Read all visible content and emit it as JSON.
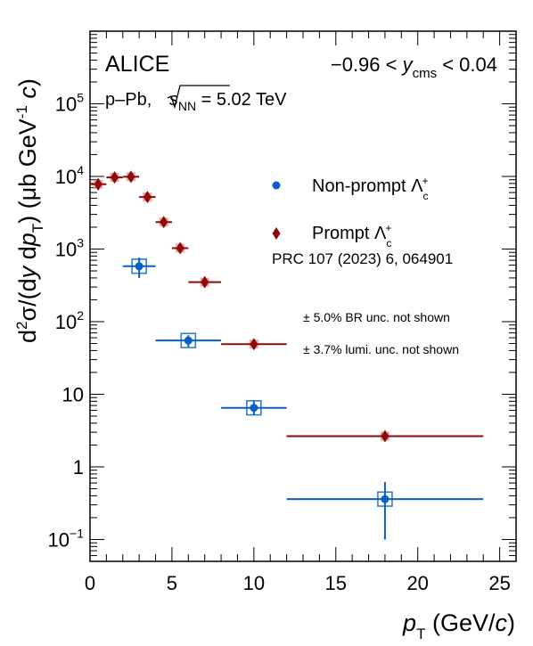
{
  "chart_data": {
    "type": "scatter",
    "log_y": true,
    "xlim": [
      0,
      26
    ],
    "ylim": [
      0.05,
      1000000
    ],
    "x_ticks": [
      0,
      5,
      10,
      15,
      20,
      25
    ],
    "y_ticks": [
      {
        "value": 0.1,
        "base": "10",
        "exp": "−1"
      },
      {
        "value": 1,
        "base": "1",
        "exp": ""
      },
      {
        "value": 10,
        "base": "10",
        "exp": ""
      },
      {
        "value": 100,
        "base": "10",
        "exp": "2"
      },
      {
        "value": 1000,
        "base": "10",
        "exp": "3"
      },
      {
        "value": 10000,
        "base": "10",
        "exp": "4"
      },
      {
        "value": 100000,
        "base": "10",
        "exp": "5"
      }
    ],
    "xlabel": {
      "main": "p",
      "sub": "T",
      "unit": " (GeV/",
      "c": "c",
      "close": ")"
    },
    "ylabel": {
      "a": "d",
      "a_sup": "2",
      "b": "σ/(d",
      "y": "y",
      "c": " d",
      "p": "p",
      "p_sub": "T",
      "d": ")  (μb GeV",
      "d_sup": "-1",
      "e": " ",
      "cc": "c",
      "f": ")"
    },
    "annotations": {
      "experiment": "ALICE",
      "system_prefix": "p–Pb, ",
      "system_s": "s",
      "system_sub": "NN",
      "system_energy": " = 5.02 TeV",
      "rapidity_left": "−0.96 < ",
      "rapidity_y": "y",
      "rapidity_sub": "cms",
      "rapidity_right": " < 0.04",
      "reference": "PRC 107 (2023) 6, 064901",
      "note_br": "± 5.0% BR unc. not shown",
      "note_lumi": "± 3.7% lumi. unc. not shown"
    },
    "legend_position": "right",
    "series": [
      {
        "name": "Non-prompt Λ",
        "name_sup": "+",
        "name_sub": "c",
        "marker": "circle",
        "color": "#0a5fc4",
        "syst_color": "#2e7fd9",
        "points": [
          {
            "x": 3,
            "xlo": 2,
            "xhi": 4,
            "y": 580,
            "ylo": 400,
            "yhi": 760
          },
          {
            "x": 6,
            "xlo": 4,
            "xhi": 8,
            "y": 55,
            "ylo": 45,
            "yhi": 65
          },
          {
            "x": 10,
            "xlo": 8,
            "xhi": 12,
            "y": 6.5,
            "ylo": 5.2,
            "yhi": 8.0
          },
          {
            "x": 18,
            "xlo": 12,
            "xhi": 24,
            "y": 0.36,
            "ylo": 0.1,
            "yhi": 0.62
          }
        ]
      },
      {
        "name": "Prompt Λ",
        "name_sup": "+",
        "name_sub": "c",
        "marker": "diamond",
        "color": "#8b0a0a",
        "syst_color": "#e88a8a",
        "points": [
          {
            "x": 0.5,
            "xlo": 0,
            "xhi": 1,
            "y": 7800,
            "ylo": 6500,
            "yhi": 9300
          },
          {
            "x": 1.5,
            "xlo": 1,
            "xhi": 2,
            "y": 9700,
            "ylo": 8200,
            "yhi": 11500
          },
          {
            "x": 2.5,
            "xlo": 2,
            "xhi": 3,
            "y": 9900,
            "ylo": 8800,
            "yhi": 11000
          },
          {
            "x": 3.5,
            "xlo": 3,
            "xhi": 4,
            "y": 5200,
            "ylo": 4700,
            "yhi": 5700
          },
          {
            "x": 4.5,
            "xlo": 4,
            "xhi": 5,
            "y": 2350,
            "ylo": 2150,
            "yhi": 2550
          },
          {
            "x": 5.5,
            "xlo": 5,
            "xhi": 6,
            "y": 1030,
            "ylo": 950,
            "yhi": 1110
          },
          {
            "x": 7,
            "xlo": 6,
            "xhi": 8,
            "y": 350,
            "ylo": 320,
            "yhi": 380
          },
          {
            "x": 10,
            "xlo": 8,
            "xhi": 12,
            "y": 49,
            "ylo": 45,
            "yhi": 53
          },
          {
            "x": 18,
            "xlo": 12,
            "xhi": 24,
            "y": 2.65,
            "ylo": 2.4,
            "yhi": 2.9
          }
        ]
      }
    ]
  }
}
